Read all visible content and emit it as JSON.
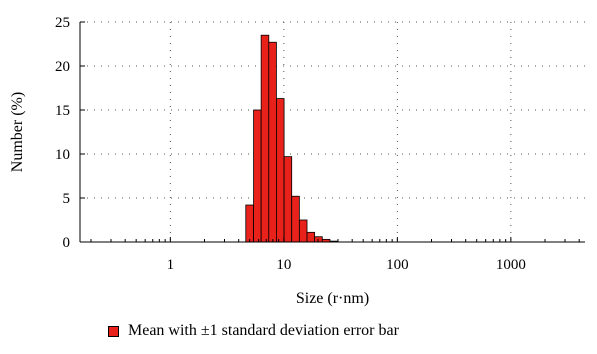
{
  "chart_data": {
    "type": "bar",
    "x_scale": "log",
    "xlabel": "Size (r·nm)",
    "ylabel": "Number (%)",
    "xlim": [
      0.16,
      4500
    ],
    "ylim": [
      0,
      25
    ],
    "x_ticks": [
      1,
      10,
      100,
      1000
    ],
    "x_tick_labels": [
      "1",
      "10",
      "100",
      "1000"
    ],
    "y_ticks": [
      0,
      5,
      10,
      15,
      20,
      25
    ],
    "y_tick_labels": [
      "0",
      "5",
      "10",
      "15",
      "20",
      "25"
    ],
    "grid": "dotted",
    "bar_color": "#e8221b",
    "bar_edge_color": "#000000",
    "bins": [
      {
        "x0": 4.62,
        "x1": 5.41,
        "value": 4.2
      },
      {
        "x0": 5.41,
        "x1": 6.31,
        "value": 15.0
      },
      {
        "x0": 6.31,
        "x1": 7.37,
        "value": 23.5
      },
      {
        "x0": 7.37,
        "x1": 8.6,
        "value": 22.7
      },
      {
        "x0": 8.6,
        "x1": 10.05,
        "value": 16.3
      },
      {
        "x0": 10.05,
        "x1": 11.73,
        "value": 9.7
      },
      {
        "x0": 11.73,
        "x1": 13.7,
        "value": 5.2
      },
      {
        "x0": 13.7,
        "x1": 16.0,
        "value": 2.5
      },
      {
        "x0": 16.0,
        "x1": 18.68,
        "value": 1.1
      },
      {
        "x0": 18.68,
        "x1": 21.81,
        "value": 0.6
      },
      {
        "x0": 21.81,
        "x1": 25.47,
        "value": 0.3
      },
      {
        "x0": 25.47,
        "x1": 29.74,
        "value": 0.1
      }
    ],
    "legend": {
      "label": "Mean with ±1 standard deviation error bar",
      "position": "bottom-left"
    }
  }
}
